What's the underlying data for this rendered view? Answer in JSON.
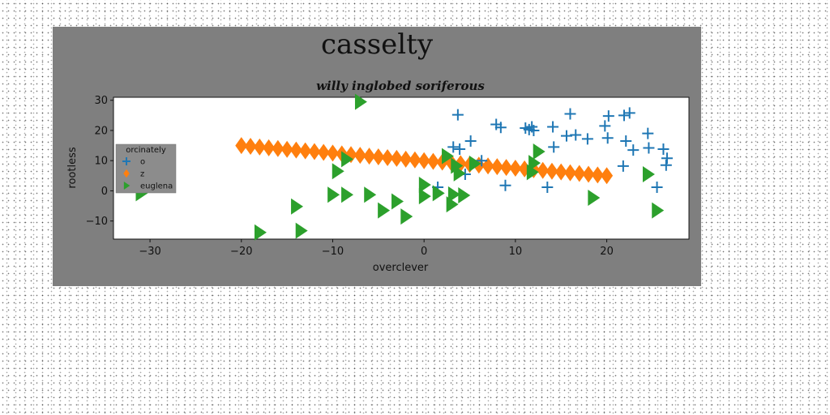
{
  "figure": {
    "title": "casselty",
    "background_color": "#7f7f7f"
  },
  "chart_data": {
    "type": "scatter",
    "title": "willy inglobed soriferous",
    "xlabel": "overclever",
    "ylabel": "rootless",
    "xlim": [
      -34,
      29
    ],
    "ylim": [
      -16,
      31
    ],
    "xticks": [
      -30,
      -20,
      -10,
      0,
      10,
      20
    ],
    "yticks": [
      -10,
      0,
      10,
      20,
      30
    ],
    "grid": false,
    "legend": {
      "title": "orcinately",
      "placement": "center-left"
    },
    "series": [
      {
        "name": "o",
        "marker": "plus",
        "color": "#1f77b4",
        "points": [
          [
            1.5,
            1.2
          ],
          [
            3.2,
            14.5
          ],
          [
            3.7,
            25.2
          ],
          [
            3.9,
            13.8
          ],
          [
            4.5,
            5.5
          ],
          [
            5.1,
            16.5
          ],
          [
            6.3,
            10.0
          ],
          [
            7.9,
            22.0
          ],
          [
            8.4,
            21.0
          ],
          [
            8.9,
            1.8
          ],
          [
            11.1,
            20.8
          ],
          [
            11.5,
            20.3
          ],
          [
            11.8,
            21.2
          ],
          [
            12.0,
            20.0
          ],
          [
            13.5,
            1.2
          ],
          [
            14.1,
            21.2
          ],
          [
            14.2,
            14.5
          ],
          [
            15.6,
            18.2
          ],
          [
            16.0,
            25.5
          ],
          [
            16.6,
            18.5
          ],
          [
            17.9,
            17.2
          ],
          [
            19.8,
            21.5
          ],
          [
            20.1,
            17.5
          ],
          [
            20.2,
            24.8
          ],
          [
            21.8,
            8.2
          ],
          [
            21.9,
            25.0
          ],
          [
            22.1,
            16.5
          ],
          [
            22.5,
            25.8
          ],
          [
            22.9,
            13.5
          ],
          [
            24.5,
            19.0
          ],
          [
            24.6,
            14.2
          ],
          [
            25.5,
            1.2
          ],
          [
            26.2,
            13.8
          ],
          [
            26.5,
            8.5
          ],
          [
            26.6,
            10.8
          ]
        ]
      },
      {
        "name": "z",
        "marker": "diamond",
        "color": "#ff7f0e",
        "points": [
          [
            -20,
            15
          ],
          [
            -19,
            14.75
          ],
          [
            -18,
            14.5
          ],
          [
            -17,
            14.25
          ],
          [
            -16,
            14
          ],
          [
            -15,
            13.75
          ],
          [
            -14,
            13.5
          ],
          [
            -13,
            13.25
          ],
          [
            -12,
            13
          ],
          [
            -11,
            12.75
          ],
          [
            -10,
            12.5
          ],
          [
            -9,
            12.25
          ],
          [
            -8,
            12
          ],
          [
            -7,
            11.75
          ],
          [
            -6,
            11.5
          ],
          [
            -5,
            11.25
          ],
          [
            -4,
            11
          ],
          [
            -3,
            10.75
          ],
          [
            -2,
            10.5
          ],
          [
            -1,
            10.25
          ],
          [
            0,
            10
          ],
          [
            1,
            9.75
          ],
          [
            2,
            9.5
          ],
          [
            3,
            9.25
          ],
          [
            4,
            9
          ],
          [
            5,
            8.75
          ],
          [
            6,
            8.5
          ],
          [
            7,
            8.25
          ],
          [
            8,
            8
          ],
          [
            9,
            7.75
          ],
          [
            10,
            7.5
          ],
          [
            11,
            7.25
          ],
          [
            12,
            7
          ],
          [
            13,
            6.75
          ],
          [
            14,
            6.5
          ],
          [
            15,
            6.25
          ],
          [
            16,
            6
          ],
          [
            17,
            5.75
          ],
          [
            18,
            5.5
          ],
          [
            19,
            5.25
          ],
          [
            20,
            5
          ]
        ]
      },
      {
        "name": "euglena",
        "marker": "triangle-right",
        "color": "#2ca02c",
        "points": [
          [
            -31,
            -0.8
          ],
          [
            -18,
            -13.8
          ],
          [
            -14,
            -5.2
          ],
          [
            -13.5,
            -13.2
          ],
          [
            -10,
            -1.3
          ],
          [
            -9.5,
            6.5
          ],
          [
            -8.5,
            -1.3
          ],
          [
            -8.5,
            10.5
          ],
          [
            -7,
            29.5
          ],
          [
            -6,
            -1.3
          ],
          [
            -4.5,
            -6.5
          ],
          [
            -3,
            -3.5
          ],
          [
            -2,
            -8.5
          ],
          [
            0,
            -1.8
          ],
          [
            0,
            2.0
          ],
          [
            1.5,
            -0.8
          ],
          [
            2.5,
            11.5
          ],
          [
            3,
            -4.5
          ],
          [
            3.2,
            -1.2
          ],
          [
            3.5,
            8.3
          ],
          [
            3.8,
            5.8
          ],
          [
            4.3,
            -1.5
          ],
          [
            5.5,
            9.0
          ],
          [
            11.8,
            6.2
          ],
          [
            12.0,
            9.2
          ],
          [
            12.5,
            13.0
          ],
          [
            18.5,
            -2.3
          ],
          [
            24.5,
            5.5
          ],
          [
            25.5,
            -6.5
          ]
        ]
      }
    ]
  }
}
